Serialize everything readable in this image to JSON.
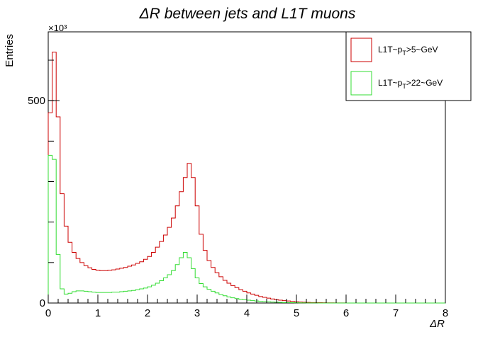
{
  "chart_data": {
    "type": "line",
    "title": "ΔR   between   jets   and   L1T   muons",
    "xlabel": "ΔR",
    "ylabel": "Entries",
    "y_multiplier": "×10³",
    "xlim": [
      0,
      8
    ],
    "ylim": [
      0,
      670
    ],
    "x_ticks": [
      "0",
      "1",
      "2",
      "3",
      "4",
      "5",
      "6",
      "7",
      "8"
    ],
    "y_ticks": [
      "0",
      "500"
    ],
    "grid": false,
    "legend_position": "top-right",
    "bin_width": 0.08,
    "series": [
      {
        "name": "L1T~p_{T}>5~GeV",
        "legend_main": "L1T~p",
        "legend_sub": "T",
        "legend_rest": ">5~GeV",
        "color": "#cc0000",
        "values": [
          470,
          620,
          460,
          270,
          190,
          150,
          125,
          110,
          100,
          92,
          87,
          83,
          81,
          80,
          80,
          81,
          82,
          84,
          86,
          88,
          91,
          94,
          98,
          102,
          108,
          115,
          125,
          138,
          152,
          168,
          187,
          210,
          240,
          275,
          310,
          345,
          310,
          240,
          170,
          130,
          105,
          88,
          75,
          65,
          56,
          49,
          43,
          38,
          33,
          29,
          25,
          22,
          19,
          16,
          14,
          12,
          10,
          8,
          7,
          6,
          5,
          4,
          3,
          2.5,
          2,
          1.5,
          1.2,
          1,
          0.8,
          0.6,
          0.5,
          0.4,
          0.3,
          0.2,
          0.2,
          0.1,
          0.1,
          0.1,
          0.1,
          0.1,
          0.1,
          0.1,
          0.1,
          0.1,
          0.1,
          0.1,
          0.1,
          0.1,
          0.1,
          0.1,
          0.1,
          0.1,
          0.1,
          0.1,
          0.1,
          0.1,
          0.1,
          0.1,
          0.1,
          0.1
        ]
      },
      {
        "name": "L1T~p_{T}>22~GeV",
        "legend_main": "L1T~p",
        "legend_sub": "T",
        "legend_rest": ">22~GeV",
        "color": "#33dd33",
        "values": [
          365,
          355,
          120,
          35,
          22,
          24,
          28,
          30,
          30,
          29,
          28,
          27,
          26,
          26,
          26,
          26,
          27,
          27,
          28,
          29,
          30,
          31,
          33,
          35,
          37,
          40,
          44,
          49,
          55,
          62,
          70,
          80,
          95,
          112,
          125,
          112,
          85,
          62,
          48,
          40,
          34,
          29,
          25,
          21,
          18,
          15,
          13,
          11,
          9,
          8,
          7,
          6,
          5,
          4,
          3.5,
          3,
          2.5,
          2,
          1.5,
          1.2,
          1,
          0.8,
          0.6,
          0.5,
          0.4,
          0.3,
          0.2,
          0.2,
          0.1,
          0.1,
          0.1,
          0.1,
          0.1,
          0.1,
          0.1,
          0.1,
          0.1,
          0.1,
          0.1,
          0.1,
          0.1,
          0.1,
          0.1,
          0.1,
          0.1,
          0.1,
          0.1,
          0.1,
          0.1,
          0.1,
          0.1,
          0.1,
          0.1,
          0.1,
          0.1,
          0.1,
          0.1,
          0.1,
          0.1,
          0.1
        ]
      }
    ]
  }
}
